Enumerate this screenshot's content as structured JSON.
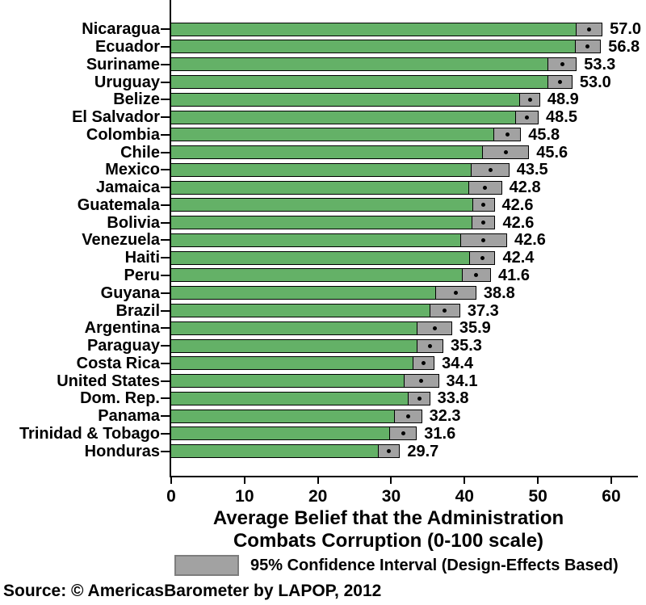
{
  "chart_data": {
    "type": "bar",
    "orientation": "horizontal",
    "xlabel_line1": "Average Belief that the Administration",
    "xlabel_line2": "Combats Corruption (0-100 scale)",
    "x_ticks": [
      0,
      10,
      20,
      30,
      40,
      50,
      60
    ],
    "xlim": [
      0,
      63.7
    ],
    "grid": false,
    "legend": {
      "label": "95% Confidence Interval (Design-Effects Based)",
      "position": "bottom"
    },
    "source": "Source: © AmericasBarometer by LAPOP, 2012",
    "colors": {
      "bar_fill": "#64b167",
      "bar_border": "#000000",
      "ci_fill": "#a2a2a2",
      "ci_border": "#000000",
      "mean_dot": "#000000",
      "axis": "#000000",
      "background": "#ffffff"
    },
    "encoding_note": "green bar runs 0 to CI lower bound; gray box spans 95% CI; black dot marks mean",
    "countries": [
      {
        "name": "Nicaragua",
        "value": 57.0,
        "label": "57.0",
        "ci_low": 55.2,
        "ci_high": 58.8
      },
      {
        "name": "Ecuador",
        "value": 56.8,
        "label": "56.8",
        "ci_low": 55.0,
        "ci_high": 58.6
      },
      {
        "name": "Suriname",
        "value": 53.3,
        "label": "53.3",
        "ci_low": 51.3,
        "ci_high": 55.3
      },
      {
        "name": "Uruguay",
        "value": 53.0,
        "label": "53.0",
        "ci_low": 51.3,
        "ci_high": 54.7
      },
      {
        "name": "Belize",
        "value": 48.9,
        "label": "48.9",
        "ci_low": 47.5,
        "ci_high": 50.3
      },
      {
        "name": "El Salvador",
        "value": 48.5,
        "label": "48.5",
        "ci_low": 46.9,
        "ci_high": 50.1
      },
      {
        "name": "Colombia",
        "value": 45.8,
        "label": "45.8",
        "ci_low": 43.9,
        "ci_high": 47.7
      },
      {
        "name": "Chile",
        "value": 45.6,
        "label": "45.6",
        "ci_low": 42.4,
        "ci_high": 48.8
      },
      {
        "name": "Mexico",
        "value": 43.5,
        "label": "43.5",
        "ci_low": 40.9,
        "ci_high": 46.1
      },
      {
        "name": "Jamaica",
        "value": 42.8,
        "label": "42.8",
        "ci_low": 40.5,
        "ci_high": 45.1
      },
      {
        "name": "Guatemala",
        "value": 42.6,
        "label": "42.6",
        "ci_low": 41.1,
        "ci_high": 44.1
      },
      {
        "name": "Bolivia",
        "value": 42.6,
        "label": "42.6",
        "ci_low": 41.0,
        "ci_high": 44.2
      },
      {
        "name": "Venezuela",
        "value": 42.6,
        "label": "42.6",
        "ci_low": 39.4,
        "ci_high": 45.8
      },
      {
        "name": "Haiti",
        "value": 42.4,
        "label": "42.4",
        "ci_low": 40.6,
        "ci_high": 44.2
      },
      {
        "name": "Peru",
        "value": 41.6,
        "label": "41.6",
        "ci_low": 39.6,
        "ci_high": 43.6
      },
      {
        "name": "Guyana",
        "value": 38.8,
        "label": "38.8",
        "ci_low": 36.0,
        "ci_high": 41.6
      },
      {
        "name": "Brazil",
        "value": 37.3,
        "label": "37.3",
        "ci_low": 35.2,
        "ci_high": 39.4
      },
      {
        "name": "Argentina",
        "value": 35.9,
        "label": "35.9",
        "ci_low": 33.5,
        "ci_high": 38.3
      },
      {
        "name": "Paraguay",
        "value": 35.3,
        "label": "35.3",
        "ci_low": 33.5,
        "ci_high": 37.1
      },
      {
        "name": "Costa Rica",
        "value": 34.4,
        "label": "34.4",
        "ci_low": 32.9,
        "ci_high": 35.9
      },
      {
        "name": "United States",
        "value": 34.1,
        "label": "34.1",
        "ci_low": 31.7,
        "ci_high": 36.5
      },
      {
        "name": "Dom. Rep.",
        "value": 33.8,
        "label": "33.8",
        "ci_low": 32.3,
        "ci_high": 35.3
      },
      {
        "name": "Panama",
        "value": 32.3,
        "label": "32.3",
        "ci_low": 30.4,
        "ci_high": 34.2
      },
      {
        "name": "Trinidad & Tobago",
        "value": 31.6,
        "label": "31.6",
        "ci_low": 29.7,
        "ci_high": 33.5
      },
      {
        "name": "Honduras",
        "value": 29.7,
        "label": "29.7",
        "ci_low": 28.2,
        "ci_high": 31.2
      }
    ]
  }
}
